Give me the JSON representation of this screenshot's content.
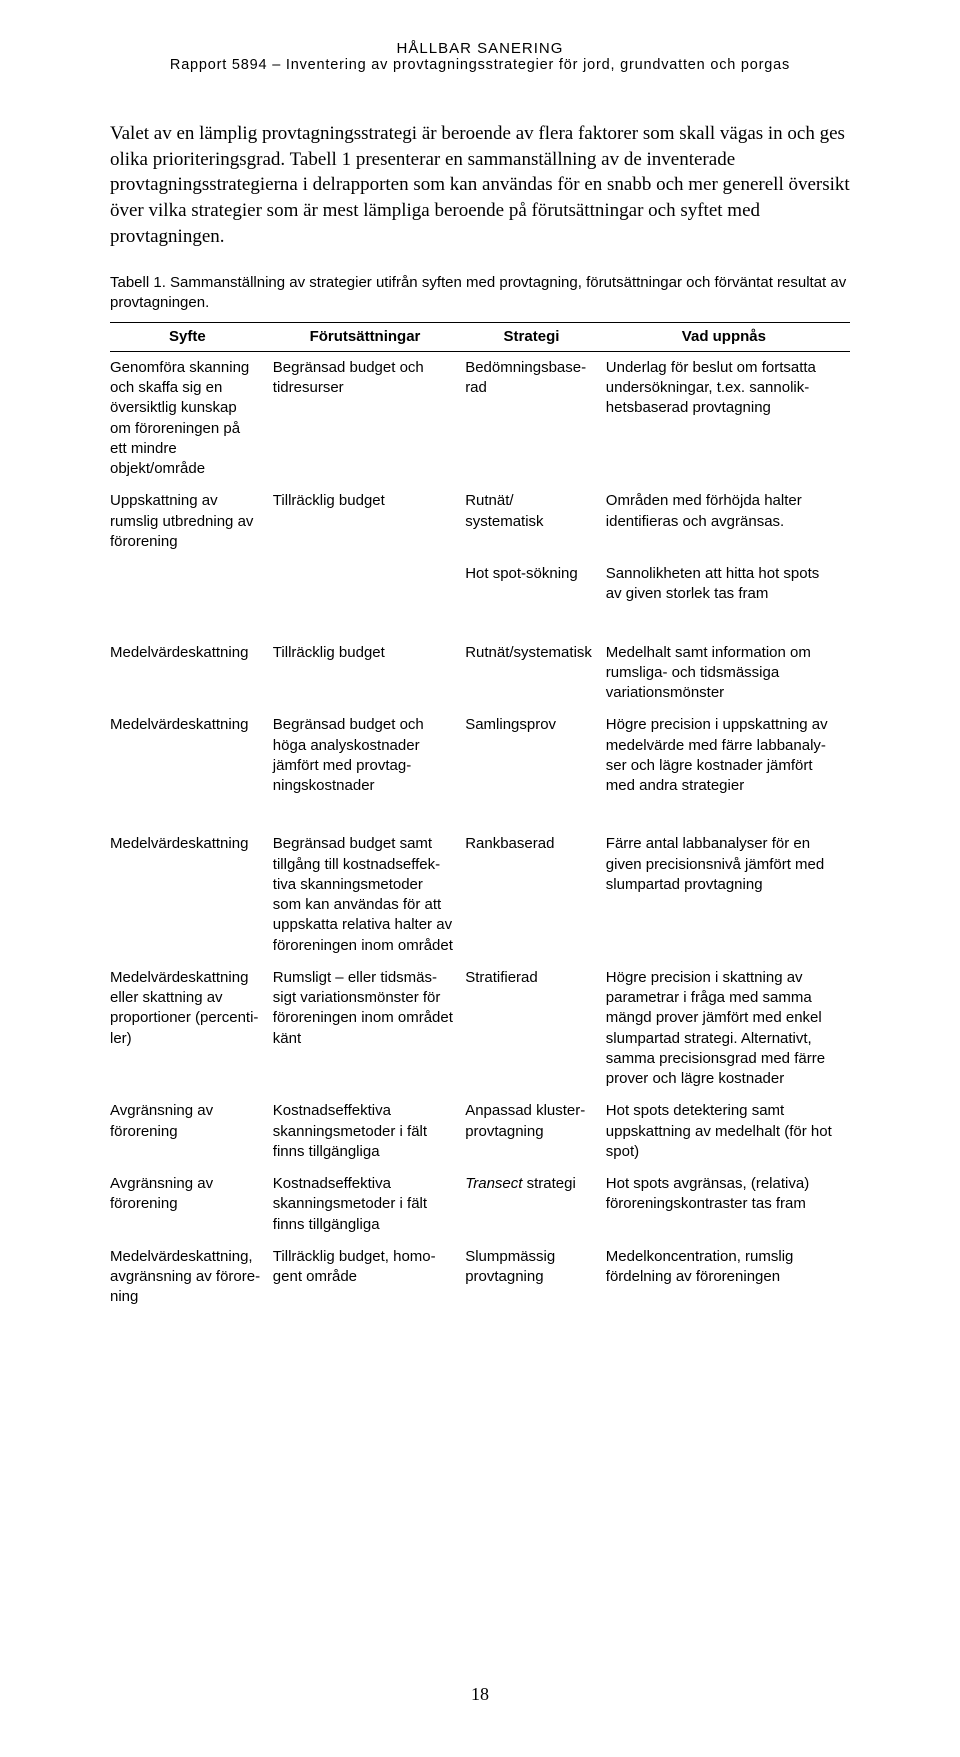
{
  "header": {
    "title": "HÅLLBAR SANERING",
    "subtitle": "Rapport 5894 – Inventering av provtagningsstrategier för jord, grundvatten och porgas"
  },
  "paragraphs": {
    "p1": "Valet av en lämplig provtagningsstrategi är beroende av flera faktorer som skall vägas in och ges olika prioriteringsgrad.",
    "p2": "Tabell 1 presenterar en samman­ställning av de inventerade provtagningsstrategierna i delrapporten som kan användas för en snabb och mer generell översikt över vilka strategier som är mest lämpliga beroende på förutsättningar och syftet med provtagningen."
  },
  "table": {
    "caption": "Tabell 1. Sammanställning av strategier utifrån syften med provtagning, förutsättningar och förväntat resultat av provtagningen.",
    "headers": {
      "c1": "Syfte",
      "c2": "Förutsättningar",
      "c3": "Strategi",
      "c4": "Vad uppnås"
    },
    "rows": {
      "r0": {
        "c1": "Genomföra skanning och skaffa sig en översiktlig kunskap om föroreningen på ett mindre objekt/område",
        "c2": "Begränsad budget och tidresurser",
        "c3": "Bedömningsbase­rad",
        "c4": "Underlag för beslut om fortsatta undersökningar, t.ex. sannolik­hetsbaserad provtagning"
      },
      "r1": {
        "c1": "Uppskattning av rumslig utbredning av förorening",
        "c2": "Tillräcklig budget",
        "c3": "Rutnät/ systematisk",
        "c4": "Områden med förhöjda halter identifieras och avgränsas."
      },
      "r2": {
        "c1": "",
        "c2": "",
        "c3": "Hot spot-sökning",
        "c4": "Sannolikheten att hitta hot spots av given storlek tas fram"
      },
      "r3": {
        "c1": "Medelvärdeskattning",
        "c2": "Tillräcklig budget",
        "c3": "Rut­nät/systematisk",
        "c4": "Medelhalt samt information om rumsliga- och tidsmässiga variationsmönster"
      },
      "r4": {
        "c1": "Medelvärdeskattning",
        "c2": "Begränsad budget och höga analyskostnader jämfört med provtag­ningskostnader",
        "c3": "Samlingsprov",
        "c4": "Högre precision i uppskattning av medelvärde med färre labbanaly­ser och lägre kostnader jämfört med andra strategier"
      },
      "r5": {
        "c1": "Medelvärdeskattning",
        "c2": "Begränsad budget samt tillgång till kostnadseffek­tiva skanningsmetoder som kan användas för att uppskatta relativa halter av föroreningen inom området",
        "c3": "Rankbaserad",
        "c4": "Färre antal labbanalyser för en given precisionsnivå jämfört med slumpartad provtagning"
      },
      "r6": {
        "c1": "Medelvärdeskattning eller skattning av proportioner (percenti­ler)",
        "c2": "Rumsligt – eller tidsmäs­sigt variationsmönster för föroreningen inom områ­det känt",
        "c3": "Stratifierad",
        "c4": "Högre precision i skattning av parametrar i fråga med samma mängd prover jämfört med enkel slumpartad strategi. Alternativt, samma precisionsgrad med färre prover och lägre kostnader"
      },
      "r7": {
        "c1": "Avgränsning av förorening",
        "c2": "Kostnadseffektiva skanningsmetoder i fält finns tillgängliga",
        "c3": "Anpassad kluster­provtagning",
        "c4": "Hot spots detektering samt uppskattning av medelhalt (för hot spot)"
      },
      "r8": {
        "c1": "Avgränsning av förorening",
        "c2": "Kostnadseffektiva skanningsmetoder i fält finns tillgängliga",
        "c3_prefix": "Transect",
        "c3_suffix": " strategi",
        "c4": "Hot spots avgränsas, (relativa) föroreningskontraster tas fram"
      },
      "r9": {
        "c1": "Medelvärdeskattning, avgränsning av förore­ning",
        "c2": "Tillräcklig budget, homo­gent område",
        "c3": "Slumpmässig provtagning",
        "c4": "Medelkoncentration, rumslig fördelning av föroreningen"
      }
    }
  },
  "page_number": "18"
}
